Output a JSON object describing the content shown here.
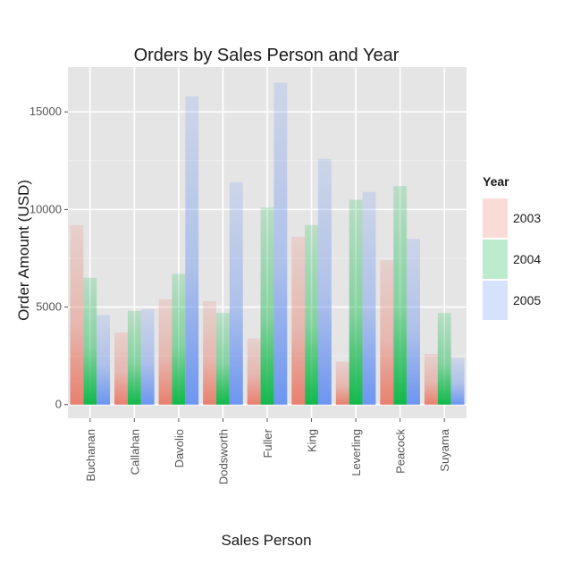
{
  "chart_data": {
    "type": "bar",
    "title": "Orders by Sales Person and Year",
    "xlabel": "Sales Person",
    "ylabel": "Order Amount (USD)",
    "ylim": [
      -700,
      17300
    ],
    "yticks": [
      0,
      5000,
      10000,
      15000
    ],
    "grid": true,
    "legend_position": "right",
    "legend_title": "Year",
    "categories": [
      "Buchanan",
      "Callahan",
      "Davolio",
      "Dodsworth",
      "Fuller",
      "King",
      "Leverling",
      "Peacock",
      "Suyama"
    ],
    "series": [
      {
        "name": "2003",
        "color": "#e8806f",
        "values": [
          9200,
          3700,
          5400,
          5300,
          3400,
          8600,
          2200,
          7400,
          2600
        ]
      },
      {
        "name": "2004",
        "color": "#12b84c",
        "values": [
          6500,
          4800,
          6700,
          4700,
          10100,
          9200,
          10500,
          11200,
          4700
        ]
      },
      {
        "name": "2005",
        "color": "#6d96f0",
        "values": [
          4600,
          4900,
          15800,
          11400,
          16500,
          12600,
          10900,
          8500,
          2400
        ]
      }
    ]
  }
}
